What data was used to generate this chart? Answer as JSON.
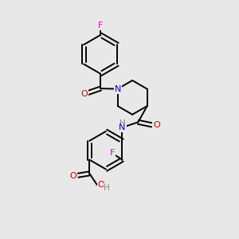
{
  "background_color": "#e8e8e8",
  "atom_colors": {
    "F": "#dd00dd",
    "O": "#cc0000",
    "N": "#0000cc",
    "H": "#888888",
    "C": "#000000"
  },
  "figsize": [
    3.0,
    3.0
  ],
  "dpi": 100
}
